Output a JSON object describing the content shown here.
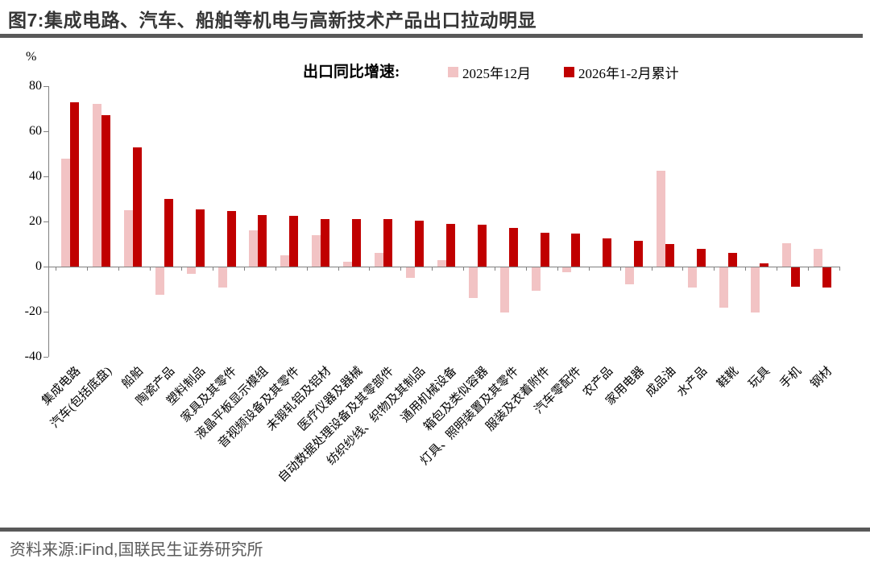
{
  "figure": {
    "title": "图7:集成电路、汽车、船舶等机电与高新技术产品出口拉动明显",
    "source": "资料来源:iFind,国联民生证券研究所"
  },
  "colors": {
    "series_light": "#F2C3C4",
    "series_dark": "#C00000",
    "axis": "#808080",
    "rule": "#595959",
    "title_text": "#363636",
    "source_text": "#595959"
  },
  "chart_data": {
    "type": "bar",
    "title": "出口同比增速:",
    "unit": "%",
    "ylim": [
      -40,
      80
    ],
    "yticks": [
      80,
      60,
      40,
      20,
      0,
      -20,
      -40
    ],
    "grid": false,
    "legend_position": "top",
    "categories": [
      "集成电路",
      "汽车(包括底盘)",
      "船舶",
      "陶瓷产品",
      "塑料制品",
      "家具及其零件",
      "液晶平板显示模组",
      "音视频设备及其零件",
      "未锻轧铝及铝材",
      "医疗仪器及器械",
      "自动数据处理设备及其零部件",
      "纺织纱线、织物及其制品",
      "通用机械设备",
      "箱包及类似容器",
      "灯具、照明装置及其零件",
      "服装及衣着附件",
      "汽车零配件",
      "农产品",
      "家用电器",
      "成品油",
      "水产品",
      "鞋靴",
      "玩具",
      "手机",
      "钢材"
    ],
    "series": [
      {
        "name": "2025年12月",
        "color": "#F2C3C4",
        "values": [
          48,
          72,
          25,
          -12,
          -3,
          -9,
          16,
          5,
          14,
          2,
          6,
          -4.5,
          3,
          -13.5,
          -20,
          -10.5,
          -2,
          0,
          -7.5,
          42.5,
          -9,
          -18,
          -20,
          10.5,
          8
        ]
      },
      {
        "name": "2026年1-2月累计",
        "color": "#C00000",
        "values": [
          73,
          67,
          53,
          30,
          25.5,
          24.5,
          23,
          22.5,
          21,
          21,
          21,
          20.5,
          19,
          18.5,
          17,
          15,
          14.5,
          12.5,
          11.5,
          10,
          8,
          6,
          1.5,
          -8.5,
          -9
        ]
      }
    ]
  }
}
